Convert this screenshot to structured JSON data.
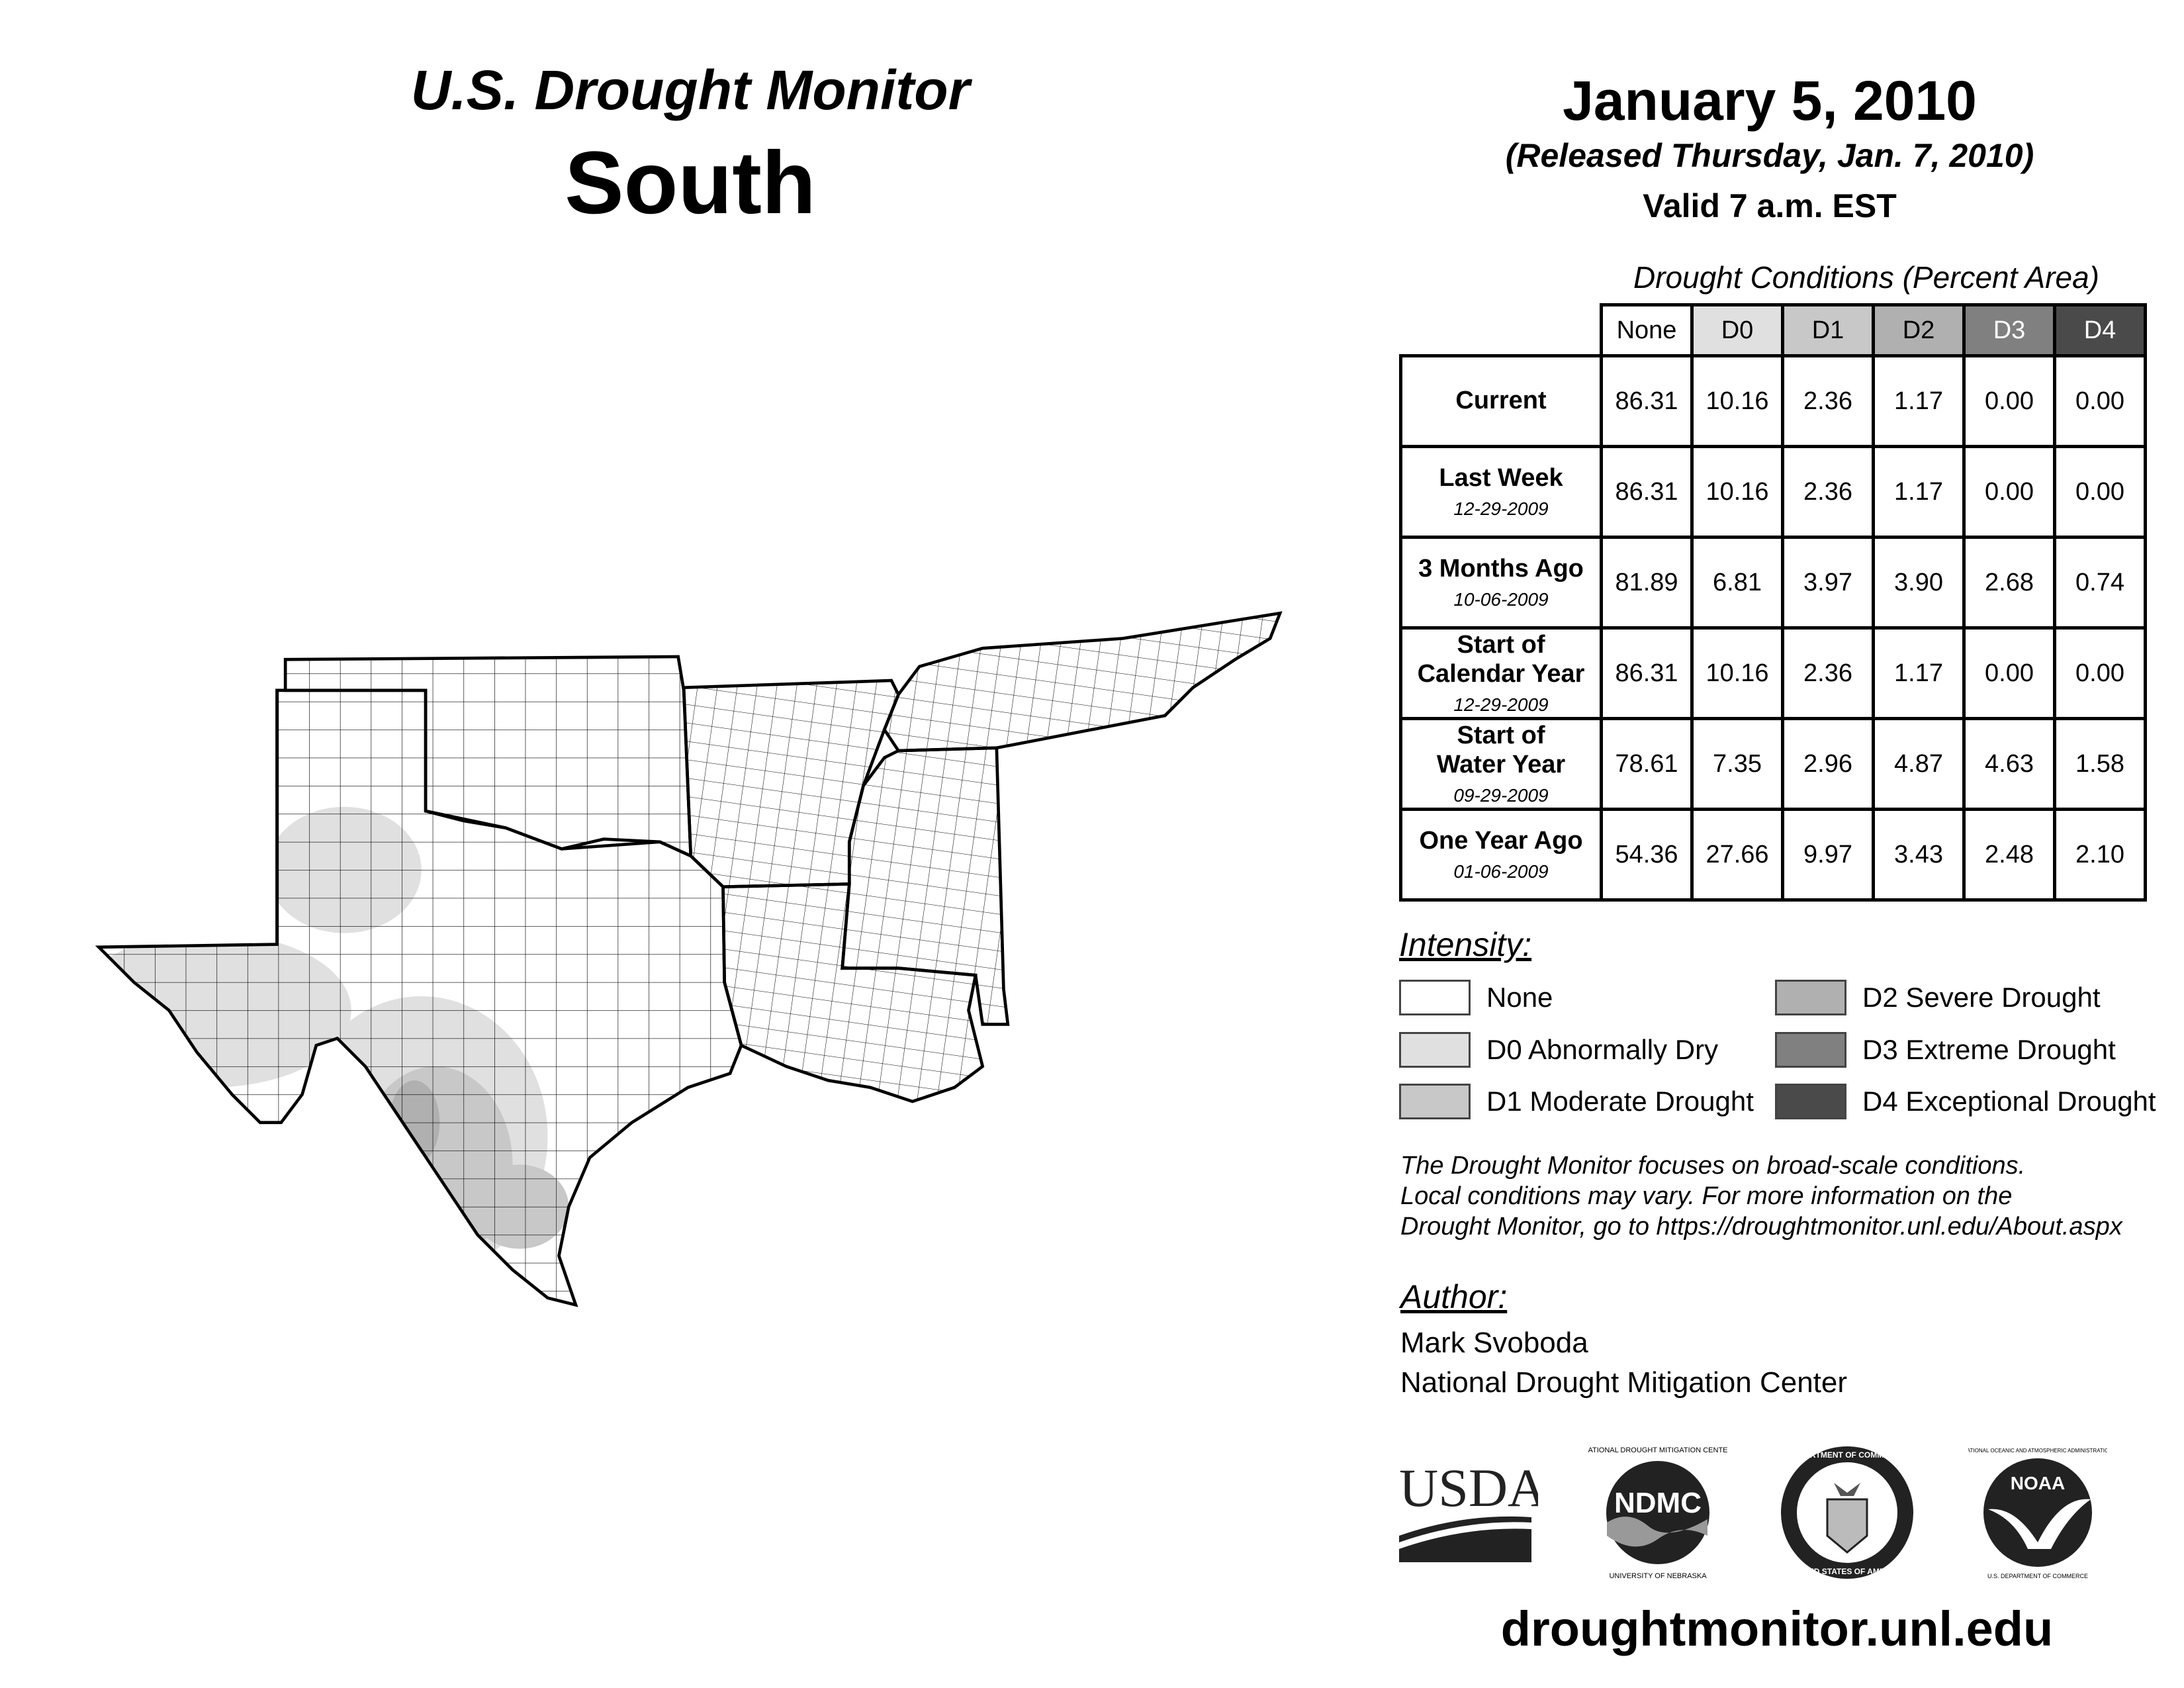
{
  "header": {
    "title": "U.S. Drought Monitor",
    "region": "South",
    "date": "January 5, 2010",
    "released": "(Released Thursday, Jan. 7, 2010)",
    "valid": "Valid 7 a.m. EST"
  },
  "table": {
    "title": "Drought Conditions (Percent Area)",
    "columns": [
      "None",
      "D0",
      "D1",
      "D2",
      "D3",
      "D4"
    ],
    "column_colors": [
      "#ffffff",
      "#e0e0e0",
      "#c8c8c8",
      "#b0b0b0",
      "#808080",
      "#4a4a4a"
    ],
    "column_text_colors": [
      "#000000",
      "#000000",
      "#000000",
      "#000000",
      "#ffffff",
      "#ffffff"
    ],
    "rows": [
      {
        "label": "Current",
        "label2": "",
        "date": "",
        "values": [
          "86.31",
          "10.16",
          "2.36",
          "1.17",
          "0.00",
          "0.00"
        ]
      },
      {
        "label": "Last Week",
        "label2": "",
        "date": "12-29-2009",
        "values": [
          "86.31",
          "10.16",
          "2.36",
          "1.17",
          "0.00",
          "0.00"
        ]
      },
      {
        "label": "3 Months Ago",
        "label2": "",
        "date": "10-06-2009",
        "values": [
          "81.89",
          "6.81",
          "3.97",
          "3.90",
          "2.68",
          "0.74"
        ]
      },
      {
        "label": "Start of",
        "label2": "Calendar Year",
        "date": "12-29-2009",
        "values": [
          "86.31",
          "10.16",
          "2.36",
          "1.17",
          "0.00",
          "0.00"
        ]
      },
      {
        "label": "Start of",
        "label2": "Water Year",
        "date": "09-29-2009",
        "values": [
          "78.61",
          "7.35",
          "2.96",
          "4.87",
          "4.63",
          "1.58"
        ]
      },
      {
        "label": "One Year Ago",
        "label2": "",
        "date": "01-06-2009",
        "values": [
          "54.36",
          "27.66",
          "9.97",
          "3.43",
          "2.48",
          "2.10"
        ]
      }
    ]
  },
  "legend": {
    "heading": "Intensity:",
    "items": [
      {
        "label": "None",
        "color": "#ffffff"
      },
      {
        "label": "D0 Abnormally Dry",
        "color": "#e0e0e0"
      },
      {
        "label": "D1 Moderate Drought",
        "color": "#c8c8c8"
      },
      {
        "label": "D2 Severe Drought",
        "color": "#b0b0b0"
      },
      {
        "label": "D3 Extreme Drought",
        "color": "#808080"
      },
      {
        "label": "D4 Exceptional Drought",
        "color": "#4a4a4a"
      }
    ]
  },
  "notes": [
    "The Drought Monitor focuses on broad-scale conditions.",
    "Local conditions may vary. For more information on the",
    "Drought Monitor, go to https://droughtmonitor.unl.edu/About.aspx"
  ],
  "author": {
    "heading": "Author:",
    "name": "Mark Svoboda",
    "org": "National Drought Mitigation Center"
  },
  "logos": {
    "usda": "USDA",
    "ndmc": "NDMC",
    "ndmc_ring": "NATIONAL DROUGHT MITIGATION CENTER",
    "ndmc_bottom": "UNIVERSITY OF NEBRASKA",
    "doc_ring": "DEPARTMENT OF COMMERCE",
    "doc_bottom": "UNITED STATES OF AMERICA",
    "noaa": "NOAA",
    "noaa_ring": "NATIONAL OCEANIC AND ATMOSPHERIC ADMINISTRATION",
    "noaa_bottom": "U.S. DEPARTMENT OF COMMERCE"
  },
  "footer_url": "droughtmonitor.unl.edu"
}
